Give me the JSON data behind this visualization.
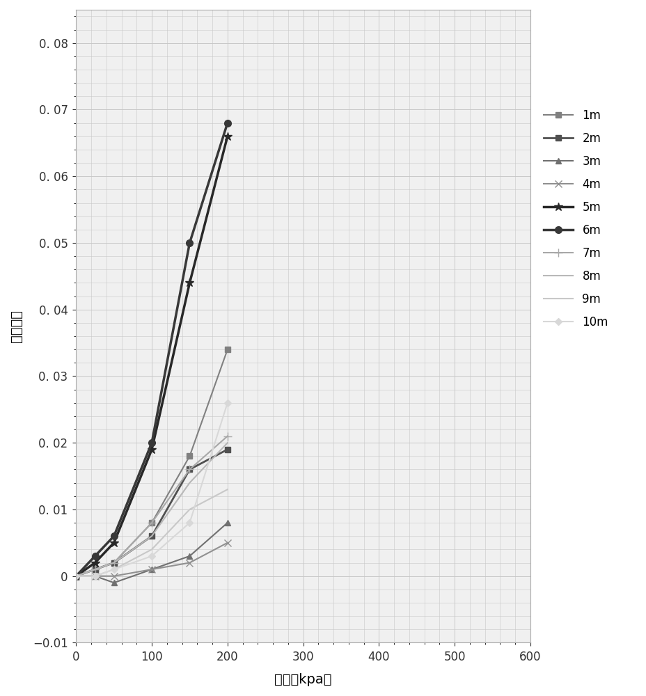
{
  "series": [
    {
      "label": "1m",
      "x": [
        0,
        25,
        50,
        100,
        150,
        200
      ],
      "y": [
        0.0,
        0.001,
        0.002,
        0.008,
        0.018,
        0.034
      ],
      "color": "#808080",
      "marker": "s",
      "linewidth": 1.5,
      "markersize": 6
    },
    {
      "label": "2m",
      "x": [
        0,
        25,
        50,
        100,
        150,
        200
      ],
      "y": [
        0.0,
        0.001,
        0.002,
        0.006,
        0.016,
        0.019
      ],
      "color": "#505050",
      "marker": "s",
      "linewidth": 2.0,
      "markersize": 6
    },
    {
      "label": "3m",
      "x": [
        0,
        25,
        50,
        100,
        150,
        200
      ],
      "y": [
        0.0,
        0.0,
        -0.001,
        0.001,
        0.003,
        0.008
      ],
      "color": "#707070",
      "marker": "^",
      "linewidth": 1.5,
      "markersize": 6
    },
    {
      "label": "4m",
      "x": [
        0,
        25,
        50,
        100,
        150,
        200
      ],
      "y": [
        0.0,
        0.0,
        0.0,
        0.001,
        0.002,
        0.005
      ],
      "color": "#909090",
      "marker": "x",
      "linewidth": 1.5,
      "markersize": 7
    },
    {
      "label": "5m",
      "x": [
        0,
        25,
        50,
        100,
        150,
        200
      ],
      "y": [
        0.0,
        0.002,
        0.005,
        0.019,
        0.044,
        0.066
      ],
      "color": "#282828",
      "marker": "*",
      "linewidth": 2.5,
      "markersize": 9
    },
    {
      "label": "6m",
      "x": [
        0,
        25,
        50,
        100,
        150,
        200
      ],
      "y": [
        0.0,
        0.003,
        0.006,
        0.02,
        0.05,
        0.068
      ],
      "color": "#383838",
      "marker": "o",
      "linewidth": 2.5,
      "markersize": 7
    },
    {
      "label": "7m",
      "x": [
        0,
        25,
        50,
        100,
        150,
        200
      ],
      "y": [
        0.0,
        0.001,
        0.002,
        0.008,
        0.016,
        0.021
      ],
      "color": "#a8a8a8",
      "marker": "+",
      "linewidth": 1.5,
      "markersize": 8
    },
    {
      "label": "8m",
      "x": [
        0,
        25,
        50,
        100,
        150,
        200
      ],
      "y": [
        0.0,
        0.001,
        0.002,
        0.006,
        0.014,
        0.02
      ],
      "color": "#b8b8b8",
      "marker": null,
      "linewidth": 1.5,
      "markersize": 6
    },
    {
      "label": "9m",
      "x": [
        0,
        25,
        50,
        100,
        150,
        200
      ],
      "y": [
        0.0,
        0.0,
        0.001,
        0.004,
        0.01,
        0.013
      ],
      "color": "#c8c8c8",
      "marker": null,
      "linewidth": 1.5,
      "markersize": 6
    },
    {
      "label": "10m",
      "x": [
        0,
        25,
        50,
        100,
        150,
        200
      ],
      "y": [
        0.0,
        0.0,
        0.001,
        0.003,
        0.008,
        0.026
      ],
      "color": "#d8d8d8",
      "marker": "D",
      "linewidth": 1.5,
      "markersize": 5
    }
  ],
  "xlabel": "压力（kpa）",
  "ylabel": "湿陷系数",
  "xlim": [
    0,
    600
  ],
  "ylim": [
    -0.01,
    0.085
  ],
  "xticks": [
    0,
    100,
    200,
    300,
    400,
    500,
    600
  ],
  "yticks": [
    -0.01,
    0.0,
    0.01,
    0.02,
    0.03,
    0.04,
    0.05,
    0.06,
    0.07,
    0.08
  ],
  "grid_color": "#c8c8c8",
  "bg_color": "#ebebeb",
  "plot_bg": "#f0f0f0",
  "legend_fontsize": 12,
  "axis_fontsize": 14,
  "tick_fontsize": 12
}
